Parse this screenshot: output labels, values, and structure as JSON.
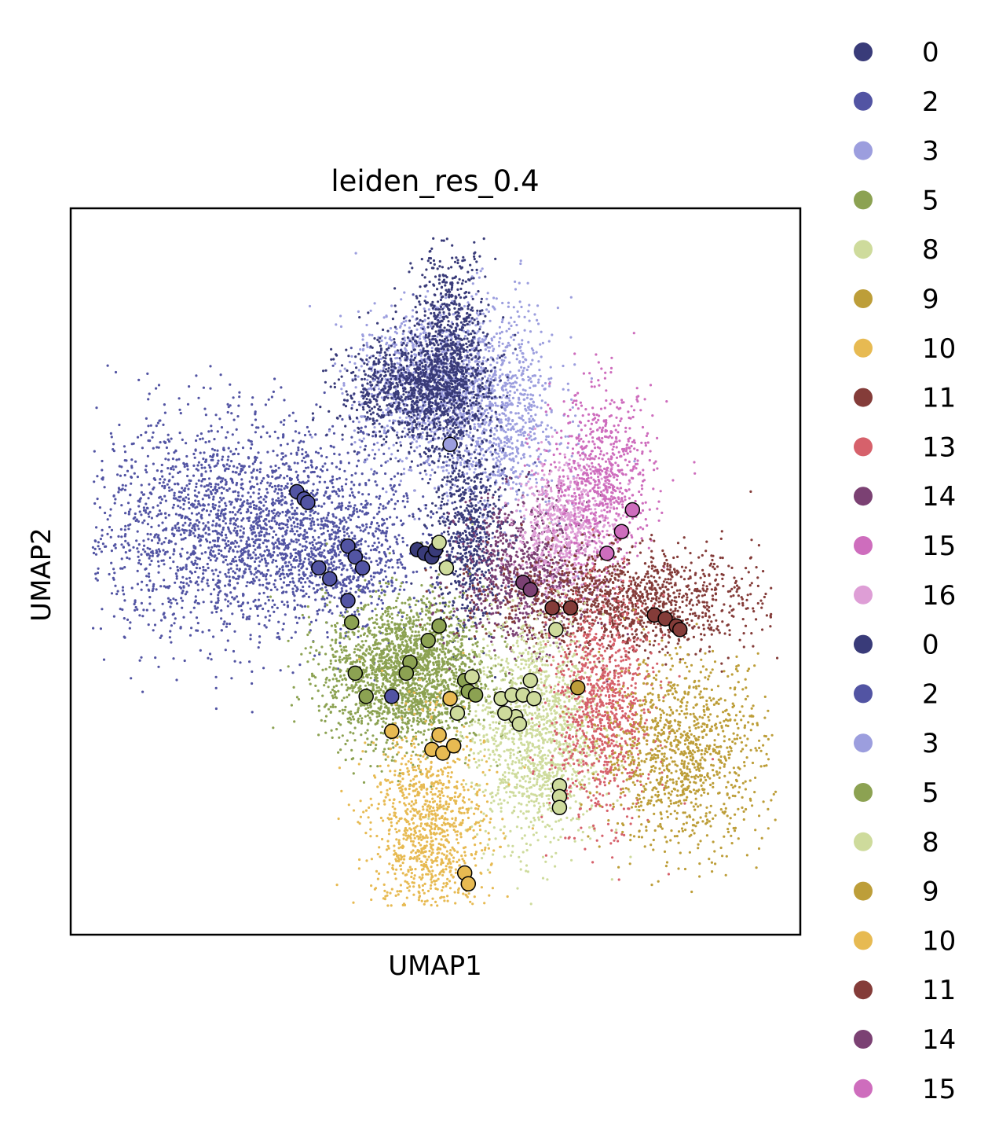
{
  "chart_data": {
    "type": "scatter",
    "title": "leiden_res_0.4",
    "xlabel": "UMAP1",
    "ylabel": "UMAP2",
    "x_ticks_shown": false,
    "y_ticks_shown": false,
    "grid": false,
    "legend_placement": "right, outside plot",
    "xlim": [
      0,
      10
    ],
    "ylim": [
      0,
      10
    ],
    "legend": [
      {
        "label": "0",
        "color": "#393b79"
      },
      {
        "label": "2",
        "color": "#5254a3"
      },
      {
        "label": "3",
        "color": "#9c9ede"
      },
      {
        "label": "5",
        "color": "#8ca252"
      },
      {
        "label": "8",
        "color": "#cedb9c"
      },
      {
        "label": "9",
        "color": "#bd9e39"
      },
      {
        "label": "10",
        "color": "#e7ba52"
      },
      {
        "label": "11",
        "color": "#843c39"
      },
      {
        "label": "13",
        "color": "#d6616b"
      },
      {
        "label": "14",
        "color": "#7b4173"
      },
      {
        "label": "15",
        "color": "#ce6dbd"
      },
      {
        "label": "16",
        "color": "#de9ed6"
      },
      {
        "label": "0",
        "color": "#393b79"
      },
      {
        "label": "2",
        "color": "#5254a3"
      },
      {
        "label": "3",
        "color": "#9c9ede"
      },
      {
        "label": "5",
        "color": "#8ca252"
      },
      {
        "label": "8",
        "color": "#cedb9c"
      },
      {
        "label": "9",
        "color": "#bd9e39"
      },
      {
        "label": "10",
        "color": "#e7ba52"
      },
      {
        "label": "11",
        "color": "#843c39"
      },
      {
        "label": "14",
        "color": "#7b4173"
      },
      {
        "label": "15",
        "color": "#ce6dbd"
      }
    ],
    "clusters": [
      {
        "cluster": "2",
        "color": "#5254a3",
        "x": 2.4,
        "y": 5.6,
        "sx": 1.2,
        "sy": 0.75,
        "n": 2600
      },
      {
        "cluster": "2",
        "color": "#5254a3",
        "x": 3.7,
        "y": 5.2,
        "sx": 0.45,
        "sy": 0.35,
        "n": 450
      },
      {
        "cluster": "3",
        "color": "#9c9ede",
        "x": 4.8,
        "y": 7.6,
        "sx": 0.45,
        "sy": 0.5,
        "n": 900
      },
      {
        "cluster": "3",
        "color": "#9c9ede",
        "x": 5.8,
        "y": 7.2,
        "sx": 0.45,
        "sy": 0.75,
        "n": 1100
      },
      {
        "cluster": "0",
        "color": "#393b79",
        "x": 4.7,
        "y": 7.5,
        "sx": 0.5,
        "sy": 0.35,
        "n": 1000
      },
      {
        "cluster": "0",
        "color": "#393b79",
        "x": 5.2,
        "y": 8.0,
        "sx": 0.25,
        "sy": 0.75,
        "n": 900
      },
      {
        "cluster": "0",
        "color": "#393b79",
        "x": 5.45,
        "y": 5.5,
        "sx": 0.25,
        "sy": 0.7,
        "n": 700
      },
      {
        "cluster": "5",
        "color": "#8ca252",
        "x": 4.6,
        "y": 3.6,
        "sx": 0.55,
        "sy": 0.5,
        "n": 2200
      },
      {
        "cluster": "14",
        "color": "#7b4173",
        "x": 6.2,
        "y": 5.0,
        "sx": 0.45,
        "sy": 0.5,
        "n": 800
      },
      {
        "cluster": "16",
        "color": "#de9ed6",
        "x": 6.8,
        "y": 5.6,
        "sx": 0.35,
        "sy": 0.45,
        "n": 700
      },
      {
        "cluster": "15",
        "color": "#ce6dbd",
        "x": 7.3,
        "y": 6.3,
        "sx": 0.35,
        "sy": 0.6,
        "n": 700
      },
      {
        "cluster": "11",
        "color": "#843c39",
        "x": 7.6,
        "y": 4.6,
        "sx": 0.9,
        "sy": 0.35,
        "n": 1300
      },
      {
        "cluster": "8",
        "color": "#cedb9c",
        "x": 6.4,
        "y": 2.8,
        "sx": 0.45,
        "sy": 0.8,
        "n": 1500
      },
      {
        "cluster": "13",
        "color": "#d6616b",
        "x": 7.3,
        "y": 3.1,
        "sx": 0.35,
        "sy": 0.75,
        "n": 1000
      },
      {
        "cluster": "9",
        "color": "#bd9e39",
        "x": 8.4,
        "y": 2.5,
        "sx": 0.55,
        "sy": 0.65,
        "n": 1100
      },
      {
        "cluster": "10",
        "color": "#e7ba52",
        "x": 4.9,
        "y": 1.4,
        "sx": 0.4,
        "sy": 0.75,
        "n": 1100
      }
    ],
    "highlighted_points": [
      {
        "x": 5.2,
        "y": 6.75,
        "color": "#9c9ede"
      },
      {
        "x": 3.1,
        "y": 6.1,
        "color": "#5254a3"
      },
      {
        "x": 3.2,
        "y": 6.0,
        "color": "#5254a3"
      },
      {
        "x": 3.25,
        "y": 5.95,
        "color": "#5254a3"
      },
      {
        "x": 3.8,
        "y": 5.35,
        "color": "#5254a3"
      },
      {
        "x": 3.9,
        "y": 5.2,
        "color": "#5254a3"
      },
      {
        "x": 4.0,
        "y": 5.05,
        "color": "#5254a3"
      },
      {
        "x": 3.4,
        "y": 5.05,
        "color": "#5254a3"
      },
      {
        "x": 3.55,
        "y": 4.9,
        "color": "#5254a3"
      },
      {
        "x": 3.8,
        "y": 4.6,
        "color": "#5254a3"
      },
      {
        "x": 4.4,
        "y": 3.28,
        "color": "#5254a3"
      },
      {
        "x": 4.75,
        "y": 5.3,
        "color": "#393b79"
      },
      {
        "x": 4.85,
        "y": 5.25,
        "color": "#393b79"
      },
      {
        "x": 4.95,
        "y": 5.2,
        "color": "#393b79"
      },
      {
        "x": 5.0,
        "y": 5.3,
        "color": "#393b79"
      },
      {
        "x": 5.05,
        "y": 5.4,
        "color": "#cedb9c"
      },
      {
        "x": 5.15,
        "y": 5.05,
        "color": "#cedb9c"
      },
      {
        "x": 3.85,
        "y": 4.3,
        "color": "#8ca252"
      },
      {
        "x": 5.05,
        "y": 4.25,
        "color": "#8ca252"
      },
      {
        "x": 4.9,
        "y": 4.05,
        "color": "#8ca252"
      },
      {
        "x": 4.65,
        "y": 3.75,
        "color": "#8ca252"
      },
      {
        "x": 4.6,
        "y": 3.6,
        "color": "#8ca252"
      },
      {
        "x": 3.9,
        "y": 3.6,
        "color": "#8ca252"
      },
      {
        "x": 4.05,
        "y": 3.28,
        "color": "#8ca252"
      },
      {
        "x": 5.4,
        "y": 3.5,
        "color": "#8ca252"
      },
      {
        "x": 5.45,
        "y": 3.35,
        "color": "#8ca252"
      },
      {
        "x": 5.55,
        "y": 3.3,
        "color": "#8ca252"
      },
      {
        "x": 5.5,
        "y": 3.55,
        "color": "#cedb9c"
      },
      {
        "x": 5.9,
        "y": 3.25,
        "color": "#cedb9c"
      },
      {
        "x": 6.05,
        "y": 3.3,
        "color": "#cedb9c"
      },
      {
        "x": 6.2,
        "y": 3.3,
        "color": "#cedb9c"
      },
      {
        "x": 6.3,
        "y": 3.5,
        "color": "#cedb9c"
      },
      {
        "x": 6.35,
        "y": 3.25,
        "color": "#cedb9c"
      },
      {
        "x": 6.1,
        "y": 3.0,
        "color": "#cedb9c"
      },
      {
        "x": 5.95,
        "y": 3.05,
        "color": "#cedb9c"
      },
      {
        "x": 6.15,
        "y": 2.9,
        "color": "#cedb9c"
      },
      {
        "x": 5.3,
        "y": 3.05,
        "color": "#cedb9c"
      },
      {
        "x": 6.65,
        "y": 4.2,
        "color": "#cedb9c"
      },
      {
        "x": 6.7,
        "y": 2.05,
        "color": "#cedb9c"
      },
      {
        "x": 6.7,
        "y": 1.9,
        "color": "#cedb9c"
      },
      {
        "x": 6.7,
        "y": 1.75,
        "color": "#cedb9c"
      },
      {
        "x": 5.2,
        "y": 3.25,
        "color": "#e7ba52"
      },
      {
        "x": 4.4,
        "y": 2.8,
        "color": "#e7ba52"
      },
      {
        "x": 5.05,
        "y": 2.75,
        "color": "#e7ba52"
      },
      {
        "x": 4.95,
        "y": 2.55,
        "color": "#e7ba52"
      },
      {
        "x": 5.1,
        "y": 2.5,
        "color": "#e7ba52"
      },
      {
        "x": 5.25,
        "y": 2.6,
        "color": "#e7ba52"
      },
      {
        "x": 5.4,
        "y": 0.85,
        "color": "#e7ba52"
      },
      {
        "x": 5.45,
        "y": 0.7,
        "color": "#e7ba52"
      },
      {
        "x": 6.95,
        "y": 3.4,
        "color": "#bd9e39"
      },
      {
        "x": 6.2,
        "y": 4.85,
        "color": "#7b4173"
      },
      {
        "x": 6.3,
        "y": 4.75,
        "color": "#7b4173"
      },
      {
        "x": 6.6,
        "y": 4.5,
        "color": "#843c39"
      },
      {
        "x": 6.85,
        "y": 4.5,
        "color": "#843c39"
      },
      {
        "x": 8.0,
        "y": 4.4,
        "color": "#843c39"
      },
      {
        "x": 8.15,
        "y": 4.35,
        "color": "#843c39"
      },
      {
        "x": 8.3,
        "y": 4.25,
        "color": "#843c39"
      },
      {
        "x": 8.35,
        "y": 4.2,
        "color": "#843c39"
      },
      {
        "x": 7.35,
        "y": 5.25,
        "color": "#ce6dbd"
      },
      {
        "x": 7.55,
        "y": 5.55,
        "color": "#ce6dbd"
      },
      {
        "x": 7.7,
        "y": 5.85,
        "color": "#ce6dbd"
      }
    ]
  }
}
